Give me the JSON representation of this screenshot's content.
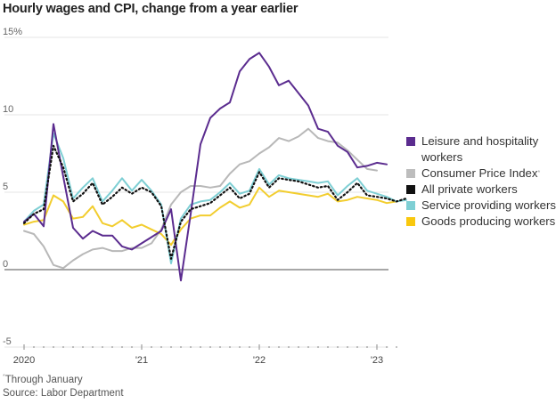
{
  "chart_data": {
    "type": "line",
    "title": "Hourly wages and CPI, change from a year earlier",
    "xlabel": "",
    "ylabel": "",
    "y_unit": "%",
    "ylim": [
      -5,
      15
    ],
    "yticks": [
      15,
      10,
      5,
      0,
      -5
    ],
    "ytick_labels": [
      "15%",
      "10",
      "5",
      "0",
      "-5"
    ],
    "x_start": "2020-01",
    "x_end": "2023-02",
    "xtick_labels": [
      {
        "label": "2020",
        "month_index": 0
      },
      {
        "label": "'21",
        "month_index": 12
      },
      {
        "label": "'22",
        "month_index": 24
      },
      {
        "label": "'23",
        "month_index": 36
      }
    ],
    "grid": true,
    "legend_position": "right",
    "series": [
      {
        "name": "Leisure and hospitality workers",
        "color": "#5b2c8f",
        "style": "solid",
        "values": [
          3.1,
          3.6,
          2.8,
          9.4,
          6.0,
          2.7,
          2.0,
          2.5,
          2.2,
          2.2,
          1.5,
          1.3,
          1.7,
          2.1,
          2.5,
          3.9,
          -0.7,
          3.6,
          8.1,
          9.8,
          10.4,
          10.8,
          12.8,
          13.6,
          14.0,
          13.1,
          11.9,
          12.2,
          11.4,
          10.6,
          9.1,
          8.9,
          8.0,
          7.6,
          6.6,
          6.7,
          6.9,
          6.8
        ]
      },
      {
        "name": "Consumer Price Index",
        "footnote_marker": true,
        "color": "#b8b8b8",
        "style": "solid",
        "values": [
          2.5,
          2.3,
          1.5,
          0.3,
          0.1,
          0.6,
          1.0,
          1.3,
          1.4,
          1.2,
          1.2,
          1.4,
          1.4,
          1.7,
          2.6,
          4.2,
          5.0,
          5.4,
          5.4,
          5.3,
          5.4,
          6.2,
          6.8,
          7.0,
          7.5,
          7.9,
          8.5,
          8.3,
          8.6,
          9.1,
          8.5,
          8.3,
          8.2,
          7.7,
          7.1,
          6.5,
          6.4
        ]
      },
      {
        "name": "All private workers",
        "color": "#111111",
        "style": "dotted",
        "values": [
          3.0,
          3.6,
          3.9,
          8.0,
          6.6,
          4.4,
          4.9,
          5.6,
          4.2,
          4.7,
          5.3,
          4.9,
          5.3,
          5.0,
          4.1,
          0.7,
          3.1,
          3.9,
          4.1,
          4.3,
          4.8,
          5.3,
          4.6,
          4.9,
          6.3,
          5.3,
          5.9,
          5.8,
          5.7,
          5.5,
          5.3,
          5.4,
          4.5,
          5.0,
          5.6,
          4.8,
          4.7,
          4.6,
          4.4,
          4.6
        ]
      },
      {
        "name": "Service providing workers",
        "color": "#7ecfd4",
        "style": "solid",
        "values": [
          3.1,
          3.8,
          4.2,
          8.8,
          7.2,
          4.6,
          5.3,
          5.9,
          4.4,
          5.1,
          5.9,
          5.1,
          5.8,
          5.1,
          4.2,
          0.4,
          3.3,
          4.2,
          4.4,
          4.5,
          5.0,
          5.6,
          4.9,
          5.1,
          6.5,
          5.5,
          6.1,
          5.9,
          5.8,
          5.7,
          5.6,
          5.7,
          4.8,
          5.4,
          5.9,
          5.1,
          4.9,
          4.7,
          4.4,
          4.5
        ]
      },
      {
        "name": "Goods producing workers",
        "color": "#f2cd2e",
        "style": "solid",
        "values": [
          2.9,
          3.1,
          3.2,
          4.8,
          4.4,
          3.3,
          3.4,
          4.1,
          3.0,
          2.8,
          3.2,
          2.7,
          2.9,
          2.6,
          2.3,
          1.6,
          2.6,
          3.3,
          3.5,
          3.5,
          4.0,
          4.4,
          4.0,
          4.2,
          5.3,
          4.7,
          5.1,
          5.0,
          4.9,
          4.8,
          4.7,
          4.9,
          4.4,
          4.5,
          4.7,
          4.6,
          4.5,
          4.3,
          4.4
        ]
      }
    ]
  },
  "legend": [
    {
      "label": "Leisure and hospitality workers",
      "color": "#5b2c8f",
      "marker": ""
    },
    {
      "label": "Consumer Price Index",
      "color": "#bdbdbd",
      "marker": "*"
    },
    {
      "label": "All private workers",
      "color": "#111111",
      "marker": ""
    },
    {
      "label": "Service providing workers",
      "color": "#7ecfd4",
      "marker": ""
    },
    {
      "label": "Goods producing workers",
      "color": "#f9c80e",
      "marker": ""
    }
  ],
  "footnote": {
    "marker": "*",
    "text": "Through January"
  },
  "source": "Source: Labor Department"
}
